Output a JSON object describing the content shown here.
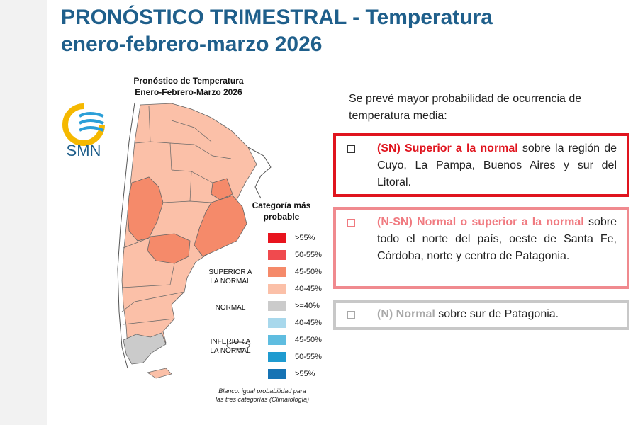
{
  "header": {
    "title_line1": "PRONÓSTICO TRIMESTRAL - Temperatura",
    "title_line2": "enero-febrero-marzo 2026"
  },
  "map": {
    "title_line1": "Pronóstico de Temperatura",
    "title_line2": "Enero-Febrero-Marzo 2026",
    "logo_text": "SMN",
    "note_line1": "Blanco: igual probabilidad para",
    "note_line2": "las tres categorías (Climatología)"
  },
  "legend": {
    "title_line1": "Categoría más",
    "title_line2": "probable",
    "superior_line1": "SUPERIOR A",
    "superior_line2": "LA NORMAL",
    "normal": "NORMAL",
    "inferior_line1": "INFERIOR A",
    "inferior_line2": "LA NORMAL",
    "items": [
      {
        "label": ">55%",
        "color": "#e8141e"
      },
      {
        "label": "50-55%",
        "color": "#f04a4e"
      },
      {
        "label": "45-50%",
        "color": "#f58a6a"
      },
      {
        "label": "40-45%",
        "color": "#fbc0a8"
      },
      {
        "label": ">=40%",
        "color": "#cbcbcb"
      },
      {
        "label": "40-45%",
        "color": "#a8d8ec"
      },
      {
        "label": "45-50%",
        "color": "#5fbde0"
      },
      {
        "label": "50-55%",
        "color": "#1f9bd0"
      },
      {
        "label": ">55%",
        "color": "#1673b4"
      }
    ]
  },
  "forecast": {
    "intro": "Se prevé mayor probabilidad de ocurrencia de temperatura media:",
    "sn": {
      "label": "(SN) Superior a la normal",
      "text": " sobre la región de Cuyo, La Pampa, Buenos Aires y sur del Litoral."
    },
    "nsn": {
      "label": "(N-SN) Normal o superior a la normal",
      "text": " sobre todo el norte del país, oeste de Santa Fe, Córdoba, norte y centro de Patagonia."
    },
    "n": {
      "label": "(N) Normal",
      "text": " sobre sur de Patagonia."
    }
  },
  "colors": {
    "title": "#1f5f8b",
    "sn_border": "#e0141e",
    "nsn_border": "#f08a8f",
    "n_border": "#c8c8c8",
    "map_light": "#fbc0a8",
    "map_medium": "#f58a6a",
    "map_normal": "#cbcbcb"
  }
}
